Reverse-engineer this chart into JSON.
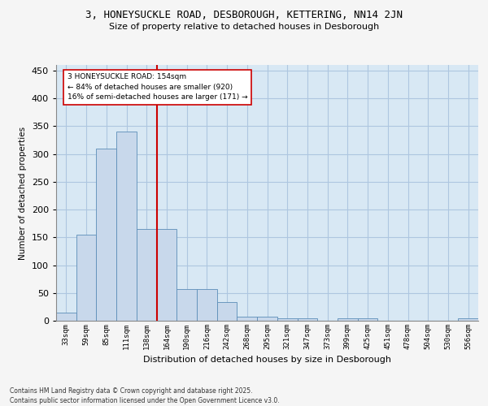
{
  "title1": "3, HONEYSUCKLE ROAD, DESBOROUGH, KETTERING, NN14 2JN",
  "title2": "Size of property relative to detached houses in Desborough",
  "xlabel": "Distribution of detached houses by size in Desborough",
  "ylabel": "Number of detached properties",
  "categories": [
    "33sqm",
    "59sqm",
    "85sqm",
    "111sqm",
    "138sqm",
    "164sqm",
    "190sqm",
    "216sqm",
    "242sqm",
    "268sqm",
    "295sqm",
    "321sqm",
    "347sqm",
    "373sqm",
    "399sqm",
    "425sqm",
    "451sqm",
    "478sqm",
    "504sqm",
    "530sqm",
    "556sqm"
  ],
  "values": [
    15,
    155,
    310,
    340,
    165,
    165,
    57,
    57,
    33,
    8,
    8,
    5,
    5,
    0,
    5,
    5,
    0,
    0,
    0,
    0,
    4
  ],
  "bar_color": "#c8d8eb",
  "bar_edge_color": "#5b8db8",
  "vline_color": "#cc0000",
  "annotation_text": "3 HONEYSUCKLE ROAD: 154sqm\n← 84% of detached houses are smaller (920)\n16% of semi-detached houses are larger (171) →",
  "annotation_box_color": "#ffffff",
  "annotation_box_edge": "#cc0000",
  "ylim": [
    0,
    460
  ],
  "yticks": [
    0,
    50,
    100,
    150,
    200,
    250,
    300,
    350,
    400,
    450
  ],
  "grid_color": "#aec6e0",
  "bg_color": "#d8e8f4",
  "outer_bg": "#f5f5f5",
  "footer1": "Contains HM Land Registry data © Crown copyright and database right 2025.",
  "footer2": "Contains public sector information licensed under the Open Government Licence v3.0."
}
